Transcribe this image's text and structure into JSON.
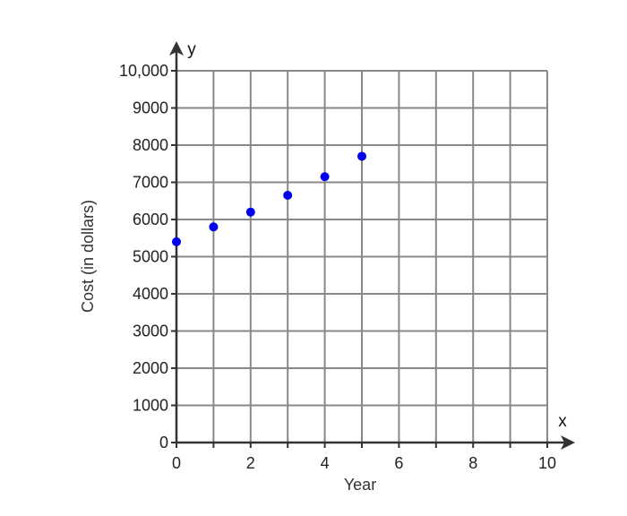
{
  "chart_data": {
    "type": "scatter",
    "xlabel": "Year",
    "ylabel": "Cost (in dollars)",
    "x_var": "x",
    "y_var": "y",
    "xlim": [
      0,
      10
    ],
    "ylim": [
      0,
      10000
    ],
    "x_gridlines": [
      0,
      1,
      2,
      3,
      4,
      5,
      6,
      7,
      8,
      9,
      10
    ],
    "y_gridlines": [
      0,
      1000,
      2000,
      3000,
      4000,
      5000,
      6000,
      7000,
      8000,
      9000,
      10000
    ],
    "x_ticks": [
      {
        "value": 0,
        "label": "0"
      },
      {
        "value": 2,
        "label": "2"
      },
      {
        "value": 4,
        "label": "4"
      },
      {
        "value": 6,
        "label": "6"
      },
      {
        "value": 8,
        "label": "8"
      },
      {
        "value": 10,
        "label": "10"
      }
    ],
    "y_ticks": [
      {
        "value": 0,
        "label": "0"
      },
      {
        "value": 1000,
        "label": "1000"
      },
      {
        "value": 2000,
        "label": "2000"
      },
      {
        "value": 3000,
        "label": "3000"
      },
      {
        "value": 4000,
        "label": "4000"
      },
      {
        "value": 5000,
        "label": "5000"
      },
      {
        "value": 6000,
        "label": "6000"
      },
      {
        "value": 7000,
        "label": "7000"
      },
      {
        "value": 8000,
        "label": "8000"
      },
      {
        "value": 9000,
        "label": "9000"
      },
      {
        "value": 10000,
        "label": "10,000"
      }
    ],
    "grid": true,
    "legend": "none",
    "series": [
      {
        "color": "#0000ee",
        "points": [
          {
            "x": 0,
            "y": 5400
          },
          {
            "x": 1,
            "y": 5800
          },
          {
            "x": 2,
            "y": 6200
          },
          {
            "x": 3,
            "y": 6650
          },
          {
            "x": 4,
            "y": 7150
          },
          {
            "x": 5,
            "y": 7700
          }
        ]
      }
    ],
    "colors": {
      "grid": "#888888",
      "axis": "#333333",
      "point": "#0000ee"
    }
  }
}
